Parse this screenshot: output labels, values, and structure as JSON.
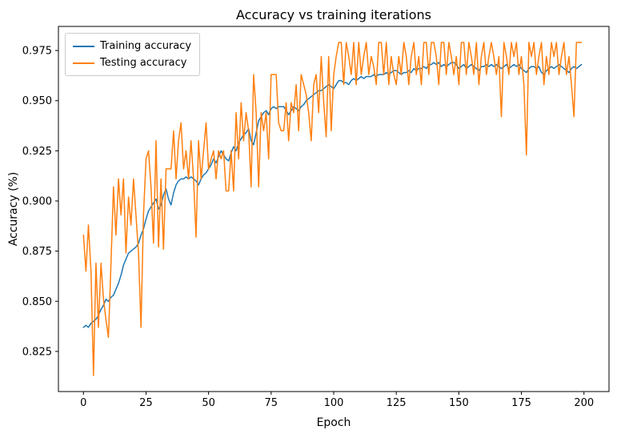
{
  "chart_data": {
    "type": "line",
    "title": "Accuracy vs training iterations",
    "xlabel": "Epoch",
    "ylabel": "Accuracy (%)",
    "x_values": "integers 0..199 (epoch index)",
    "xlim": [
      -10,
      210
    ],
    "ylim": [
      0.805,
      0.987
    ],
    "x_ticks": [
      0,
      25,
      50,
      75,
      100,
      125,
      150,
      175,
      200
    ],
    "y_ticks": [
      0.825,
      0.85,
      0.875,
      0.9,
      0.925,
      0.95,
      0.975
    ],
    "grid": false,
    "legend_position": "upper left",
    "series": [
      {
        "name": "Training accuracy",
        "color": "#1f77b4",
        "values": [
          0.837,
          0.838,
          0.837,
          0.839,
          0.84,
          0.841,
          0.843,
          0.846,
          0.848,
          0.851,
          0.85,
          0.852,
          0.853,
          0.856,
          0.859,
          0.863,
          0.868,
          0.871,
          0.874,
          0.875,
          0.876,
          0.877,
          0.879,
          0.883,
          0.886,
          0.891,
          0.895,
          0.897,
          0.899,
          0.901,
          0.896,
          0.898,
          0.903,
          0.906,
          0.901,
          0.898,
          0.904,
          0.908,
          0.91,
          0.911,
          0.911,
          0.912,
          0.911,
          0.912,
          0.911,
          0.91,
          0.908,
          0.911,
          0.913,
          0.914,
          0.916,
          0.918,
          0.921,
          0.919,
          0.922,
          0.925,
          0.923,
          0.921,
          0.92,
          0.924,
          0.927,
          0.925,
          0.929,
          0.931,
          0.933,
          0.934,
          0.936,
          0.93,
          0.928,
          0.934,
          0.94,
          0.942,
          0.944,
          0.945,
          0.943,
          0.946,
          0.947,
          0.946,
          0.947,
          0.947,
          0.947,
          0.945,
          0.943,
          0.945,
          0.947,
          0.946,
          0.945,
          0.947,
          0.948,
          0.95,
          0.951,
          0.952,
          0.953,
          0.954,
          0.955,
          0.955,
          0.956,
          0.957,
          0.958,
          0.957,
          0.956,
          0.958,
          0.96,
          0.96,
          0.959,
          0.959,
          0.958,
          0.96,
          0.961,
          0.96,
          0.961,
          0.962,
          0.961,
          0.962,
          0.962,
          0.962,
          0.963,
          0.962,
          0.963,
          0.963,
          0.963,
          0.964,
          0.963,
          0.964,
          0.965,
          0.965,
          0.964,
          0.963,
          0.964,
          0.964,
          0.965,
          0.964,
          0.966,
          0.965,
          0.966,
          0.966,
          0.967,
          0.966,
          0.968,
          0.968,
          0.969,
          0.968,
          0.969,
          0.967,
          0.968,
          0.967,
          0.968,
          0.969,
          0.969,
          0.968,
          0.966,
          0.967,
          0.968,
          0.966,
          0.967,
          0.968,
          0.967,
          0.966,
          0.965,
          0.967,
          0.967,
          0.968,
          0.967,
          0.968,
          0.967,
          0.968,
          0.967,
          0.966,
          0.967,
          0.968,
          0.966,
          0.967,
          0.968,
          0.967,
          0.968,
          0.966,
          0.965,
          0.964,
          0.966,
          0.967,
          0.967,
          0.966,
          0.967,
          0.964,
          0.963,
          0.965,
          0.966,
          0.967,
          0.966,
          0.967,
          0.968,
          0.967,
          0.966,
          0.965,
          0.964,
          0.966,
          0.967,
          0.966,
          0.967,
          0.968
        ]
      },
      {
        "name": "Testing accuracy",
        "color": "#ff7f0e",
        "values": [
          0.883,
          0.865,
          0.888,
          0.865,
          0.813,
          0.869,
          0.837,
          0.869,
          0.851,
          0.841,
          0.832,
          0.869,
          0.907,
          0.883,
          0.911,
          0.893,
          0.911,
          0.874,
          0.902,
          0.888,
          0.911,
          0.893,
          0.874,
          0.837,
          0.893,
          0.921,
          0.925,
          0.907,
          0.879,
          0.93,
          0.877,
          0.911,
          0.876,
          0.916,
          0.916,
          0.916,
          0.935,
          0.911,
          0.93,
          0.939,
          0.916,
          0.925,
          0.911,
          0.93,
          0.911,
          0.882,
          0.93,
          0.911,
          0.925,
          0.939,
          0.916,
          0.921,
          0.925,
          0.911,
          0.925,
          0.921,
          0.925,
          0.905,
          0.905,
          0.925,
          0.905,
          0.944,
          0.921,
          0.949,
          0.93,
          0.944,
          0.935,
          0.907,
          0.963,
          0.944,
          0.907,
          0.944,
          0.935,
          0.944,
          0.921,
          0.963,
          0.963,
          0.963,
          0.939,
          0.935,
          0.935,
          0.949,
          0.93,
          0.949,
          0.944,
          0.958,
          0.935,
          0.963,
          0.958,
          0.953,
          0.944,
          0.93,
          0.958,
          0.963,
          0.944,
          0.972,
          0.949,
          0.932,
          0.972,
          0.935,
          0.963,
          0.972,
          0.979,
          0.979,
          0.958,
          0.979,
          0.972,
          0.963,
          0.979,
          0.958,
          0.979,
          0.963,
          0.972,
          0.979,
          0.963,
          0.972,
          0.967,
          0.958,
          0.979,
          0.979,
          0.963,
          0.979,
          0.958,
          0.972,
          0.963,
          0.958,
          0.972,
          0.963,
          0.979,
          0.972,
          0.958,
          0.972,
          0.979,
          0.963,
          0.972,
          0.958,
          0.979,
          0.979,
          0.963,
          0.979,
          0.979,
          0.972,
          0.958,
          0.979,
          0.979,
          0.963,
          0.979,
          0.972,
          0.963,
          0.972,
          0.958,
          0.979,
          0.979,
          0.963,
          0.979,
          0.972,
          0.963,
          0.979,
          0.958,
          0.972,
          0.979,
          0.963,
          0.972,
          0.979,
          0.972,
          0.963,
          0.972,
          0.942,
          0.979,
          0.972,
          0.963,
          0.979,
          0.972,
          0.979,
          0.963,
          0.972,
          0.958,
          0.923,
          0.979,
          0.972,
          0.979,
          0.963,
          0.972,
          0.979,
          0.958,
          0.972,
          0.963,
          0.979,
          0.972,
          0.979,
          0.963,
          0.972,
          0.979,
          0.963,
          0.972,
          0.958,
          0.942,
          0.979,
          0.979,
          0.979
        ]
      }
    ]
  }
}
